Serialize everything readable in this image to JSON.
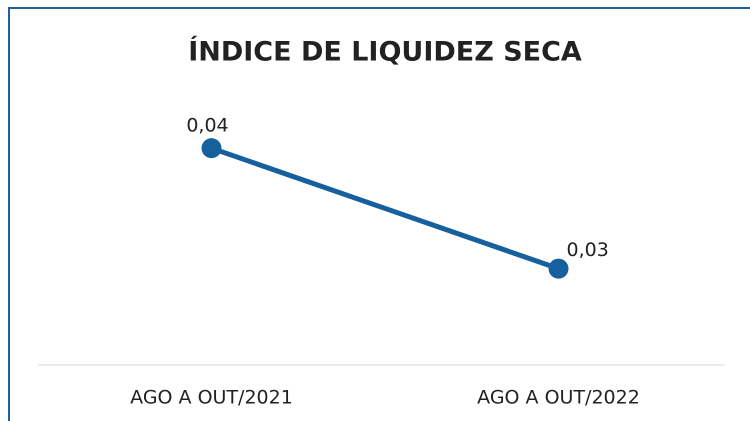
{
  "chart_data": {
    "type": "line",
    "title": "ÍNDICE DE LIQUIDEZ SECA",
    "categories": [
      "AGO A OUT/2021",
      "AGO A OUT/2022"
    ],
    "series": [
      {
        "color": "#17609e",
        "values": [
          0.04,
          0.03
        ],
        "value_labels": [
          "0,04",
          "0,03"
        ]
      }
    ],
    "ylim": [
      0.022,
      0.044
    ]
  }
}
